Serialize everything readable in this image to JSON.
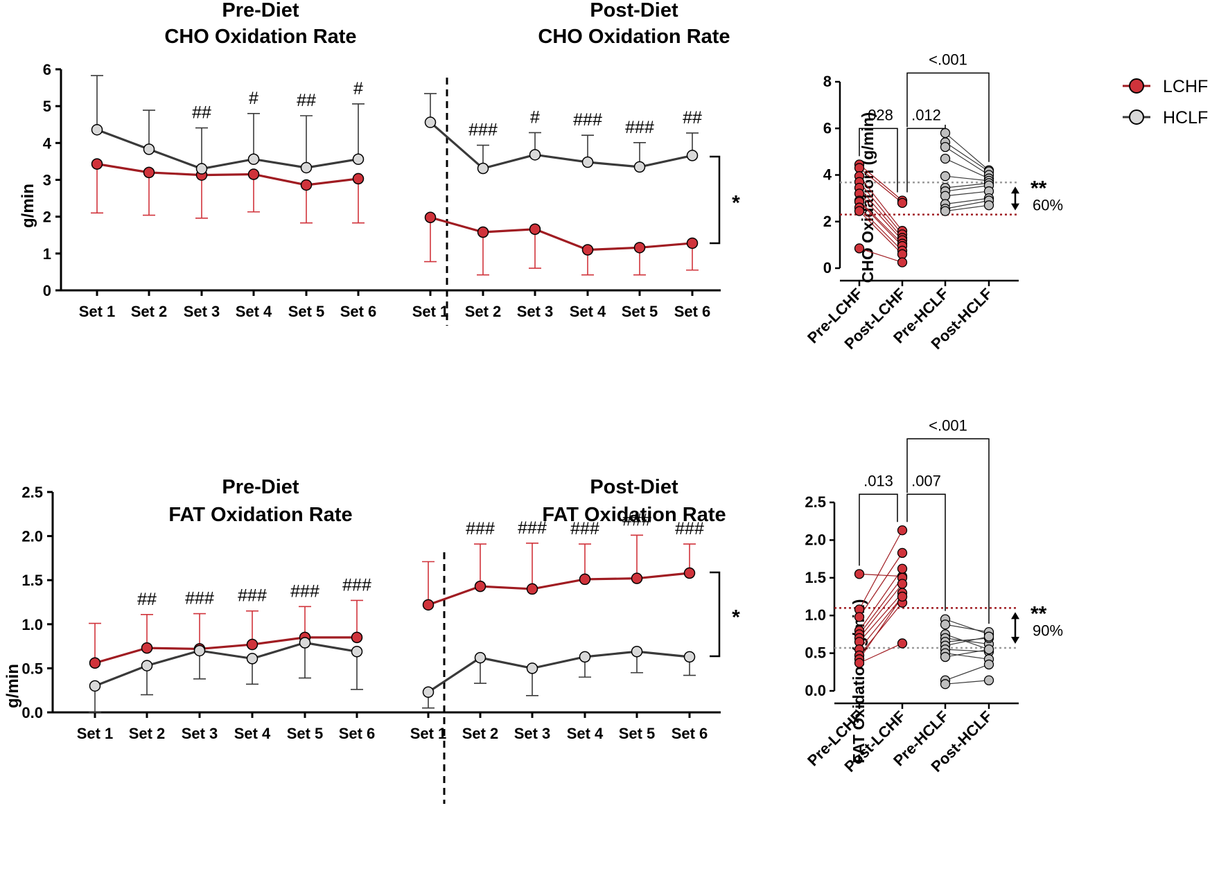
{
  "colors": {
    "lchf": "#d0333b",
    "lchf_line": "#a01c22",
    "hclf": "#d9d9d9",
    "hclf_line": "#3a3a3a",
    "hclf_ref": "#9b9b9b"
  },
  "legend": {
    "entries": [
      "LCHF",
      "HCLF"
    ]
  },
  "chart_data": [
    {
      "id": "pre-cho",
      "type": "line",
      "title": [
        "Pre-Diet",
        "CHO Oxidation Rate"
      ],
      "ylabel": "g/min",
      "categories": [
        "Set 1",
        "Set 2",
        "Set 3",
        "Set 4",
        "Set 5",
        "Set 6"
      ],
      "ylim": [
        0,
        6
      ],
      "yticks": [
        "0",
        "1",
        "2",
        "3",
        "4",
        "5",
        "6"
      ],
      "series": [
        {
          "name": "LCHF",
          "values": [
            3.43,
            3.2,
            3.13,
            3.15,
            2.86,
            3.03
          ],
          "sd": [
            1.33,
            1.16,
            1.17,
            1.02,
            1.03,
            1.2
          ],
          "sd_dir": "down"
        },
        {
          "name": "HCLF",
          "values": [
            4.36,
            3.83,
            3.3,
            3.56,
            3.33,
            3.56
          ],
          "sd": [
            1.47,
            1.06,
            1.11,
            1.24,
            1.41,
            1.5
          ],
          "sd_dir": "up"
        }
      ],
      "annotations": [
        "",
        "",
        "##",
        "#",
        "##",
        "#"
      ]
    },
    {
      "id": "post-cho",
      "type": "line",
      "title": [
        "Post-Diet",
        "CHO Oxidation Rate"
      ],
      "categories": [
        "Set 1",
        "Set 2",
        "Set 3",
        "Set 4",
        "Set 5",
        "Set 6"
      ],
      "ylim": [
        0,
        6
      ],
      "series": [
        {
          "name": "LCHF",
          "values": [
            1.98,
            1.58,
            1.66,
            1.1,
            1.16,
            1.28
          ],
          "sd": [
            1.2,
            1.16,
            1.06,
            0.68,
            0.74,
            0.73
          ],
          "sd_dir": "down"
        },
        {
          "name": "HCLF",
          "values": [
            4.56,
            3.31,
            3.68,
            3.48,
            3.35,
            3.66
          ],
          "sd": [
            0.78,
            0.63,
            0.6,
            0.73,
            0.66,
            0.61
          ],
          "sd_dir": "up"
        }
      ],
      "annotations": [
        "",
        "###",
        "#",
        "###",
        "###",
        "##"
      ],
      "significance": "*"
    },
    {
      "id": "cho-individual",
      "type": "scatter",
      "ylabel": "CHO Oxidation (g/min)",
      "categories": [
        "Pre-LCHF",
        "Post-LCHF",
        "Pre-HCLF",
        "Post-HCLF"
      ],
      "ylim": [
        0,
        8
      ],
      "yticks": [
        "0",
        "2",
        "4",
        "6",
        "8"
      ],
      "lchf_pairs": [
        [
          4.45,
          2.9
        ],
        [
          4.3,
          2.8
        ],
        [
          3.95,
          1.6
        ],
        [
          3.7,
          1.45
        ],
        [
          3.45,
          1.3
        ],
        [
          3.2,
          1.2
        ],
        [
          2.9,
          1.05
        ],
        [
          2.85,
          0.95
        ],
        [
          2.6,
          0.75
        ],
        [
          2.45,
          0.6
        ],
        [
          0.85,
          0.25
        ]
      ],
      "hclf_pairs": [
        [
          5.8,
          4.2
        ],
        [
          5.4,
          4.15
        ],
        [
          5.2,
          4.0
        ],
        [
          4.7,
          3.85
        ],
        [
          3.95,
          3.75
        ],
        [
          3.45,
          3.65
        ],
        [
          3.3,
          3.55
        ],
        [
          3.1,
          3.3
        ],
        [
          2.75,
          3.0
        ],
        [
          2.55,
          2.9
        ],
        [
          2.45,
          2.7
        ]
      ],
      "ref_lines": [
        3.68,
        2.3
      ],
      "brackets": [
        ".028",
        ".012",
        "<.001"
      ],
      "change": {
        "stars": "**",
        "pct": "60%"
      }
    },
    {
      "id": "pre-fat",
      "type": "line",
      "title": [
        "Pre-Diet",
        "FAT Oxidation Rate"
      ],
      "ylabel": "g/min",
      "categories": [
        "Set 1",
        "Set 2",
        "Set 3",
        "Set 4",
        "Set 5",
        "Set 6"
      ],
      "ylim": [
        0,
        2.5
      ],
      "yticks": [
        "0.0",
        "0.5",
        "1.0",
        "1.5",
        "2.0",
        "2.5"
      ],
      "series": [
        {
          "name": "LCHF",
          "values": [
            0.56,
            0.73,
            0.72,
            0.77,
            0.85,
            0.85
          ],
          "sd": [
            0.45,
            0.38,
            0.4,
            0.38,
            0.35,
            0.42
          ],
          "sd_dir": "up"
        },
        {
          "name": "HCLF",
          "values": [
            0.3,
            0.53,
            0.7,
            0.61,
            0.79,
            0.69
          ],
          "sd": [
            0.3,
            0.33,
            0.32,
            0.29,
            0.4,
            0.43
          ],
          "sd_dir": "down"
        }
      ],
      "annotations": [
        "",
        "##",
        "###",
        "###",
        "###",
        "###"
      ]
    },
    {
      "id": "post-fat",
      "type": "line",
      "title": [
        "Post-Diet",
        "FAT Oxidation Rate"
      ],
      "categories": [
        "Set 1",
        "Set 2",
        "Set 3",
        "Set 4",
        "Set 5",
        "Set 6"
      ],
      "ylim": [
        0,
        2.5
      ],
      "series": [
        {
          "name": "LCHF",
          "values": [
            1.22,
            1.43,
            1.4,
            1.51,
            1.52,
            1.58
          ],
          "sd": [
            0.49,
            0.48,
            0.52,
            0.4,
            0.49,
            0.33
          ],
          "sd_dir": "up"
        },
        {
          "name": "HCLF",
          "values": [
            0.23,
            0.62,
            0.5,
            0.63,
            0.69,
            0.63
          ],
          "sd": [
            0.18,
            0.29,
            0.31,
            0.23,
            0.24,
            0.21
          ],
          "sd_dir": "down"
        }
      ],
      "annotations": [
        "",
        "###",
        "###",
        "###",
        "###",
        "###"
      ],
      "significance": "*"
    },
    {
      "id": "fat-individual",
      "type": "scatter",
      "ylabel": "FAT Oxidation (g/min)",
      "categories": [
        "Pre-LCHF",
        "Post-LCHF",
        "Pre-HCLF",
        "Post-HCLF"
      ],
      "ylim": [
        0,
        2.5
      ],
      "yticks": [
        "0.0",
        "0.5",
        "1.0",
        "1.5",
        "2.0",
        "2.5"
      ],
      "lchf_pairs": [
        [
          1.55,
          1.52
        ],
        [
          1.08,
          2.13
        ],
        [
          0.98,
          1.83
        ],
        [
          0.8,
          1.62
        ],
        [
          0.75,
          1.5
        ],
        [
          0.7,
          1.42
        ],
        [
          0.65,
          1.3
        ],
        [
          0.55,
          1.25
        ],
        [
          0.47,
          1.17
        ],
        [
          0.42,
          1.25
        ],
        [
          0.37,
          0.63
        ]
      ],
      "hclf_pairs": [
        [
          0.95,
          0.75
        ],
        [
          0.88,
          0.78
        ],
        [
          0.75,
          0.55
        ],
        [
          0.7,
          0.62
        ],
        [
          0.65,
          0.7
        ],
        [
          0.6,
          0.72
        ],
        [
          0.55,
          0.52
        ],
        [
          0.5,
          0.42
        ],
        [
          0.45,
          0.55
        ],
        [
          0.14,
          0.35
        ],
        [
          0.09,
          0.14
        ]
      ],
      "ref_lines": [
        1.1,
        0.57
      ],
      "brackets": [
        ".013",
        ".007",
        "<.001"
      ],
      "change": {
        "stars": "**",
        "pct": "90%"
      }
    }
  ]
}
